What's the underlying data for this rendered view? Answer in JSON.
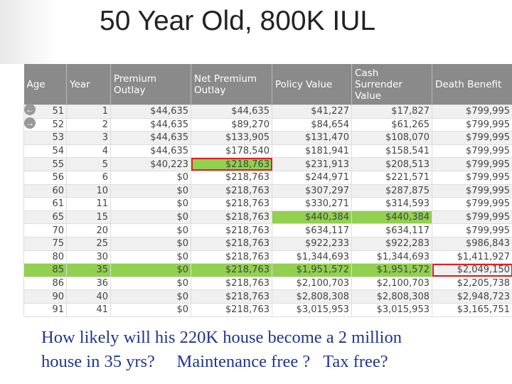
{
  "title": "50 Year Old, 800K IUL",
  "table": {
    "header": [
      "Age",
      "Year",
      "Premium Outlay",
      "Net Premium Outlay",
      "Policy Value",
      "Cash Surrender Value",
      "Death Benefit"
    ],
    "rows": [
      [
        "51",
        "1",
        "$44,635",
        "$44,635",
        "$41,227",
        "$17,827",
        "$799,995"
      ],
      [
        "52",
        "2",
        "$44,635",
        "$89,270",
        "$84,654",
        "$61,265",
        "$799,995"
      ],
      [
        "53",
        "3",
        "$44,635",
        "$133,905",
        "$131,470",
        "$108,070",
        "$799,995"
      ],
      [
        "54",
        "4",
        "$44,635",
        "$178,540",
        "$181,941",
        "$158,541",
        "$799,995"
      ],
      [
        "55",
        "5",
        "$40,223",
        "$218,763",
        "$231,913",
        "$208,513",
        "$799,995"
      ],
      [
        "56",
        "6",
        "$0",
        "$218,763",
        "$244,971",
        "$221,571",
        "$799,995"
      ],
      [
        "60",
        "10",
        "$0",
        "$218,763",
        "$307,297",
        "$287,875",
        "$799,995"
      ],
      [
        "61",
        "11",
        "$0",
        "$218,763",
        "$330,271",
        "$314,593",
        "$799,995"
      ],
      [
        "65",
        "15",
        "$0",
        "$218,763",
        "$440,384",
        "$440,384",
        "$799,995"
      ],
      [
        "70",
        "20",
        "$0",
        "$218,763",
        "$634,117",
        "$634,117",
        "$799,995"
      ],
      [
        "75",
        "25",
        "$0",
        "$218,763",
        "$922,233",
        "$922,283",
        "$986,843"
      ],
      [
        "80",
        "30",
        "$0",
        "$218,763",
        "$1,344,693",
        "$1,344,693",
        "$1,411,927"
      ],
      [
        "85",
        "35",
        "$0",
        "$218,763",
        "$1,951,572",
        "$1,951,572",
        "$2,049,150"
      ],
      [
        "86",
        "36",
        "$0",
        "$218,763",
        "$2,100,703",
        "$2,100,703",
        "$2,205,738"
      ],
      [
        "90",
        "40",
        "$0",
        "$218,763",
        "$2,808,308",
        "$2,808,308",
        "$2,948,723"
      ],
      [
        "91",
        "41",
        "$0",
        "$218,763",
        "$3,015,953",
        "$3,015,953",
        "$3,165,751"
      ]
    ]
  },
  "caption": {
    "line1": "How likely will his 220K house become a 2 million",
    "line2": "house in 35 yrs?     Maintenance free ?   Tax free?"
  }
}
